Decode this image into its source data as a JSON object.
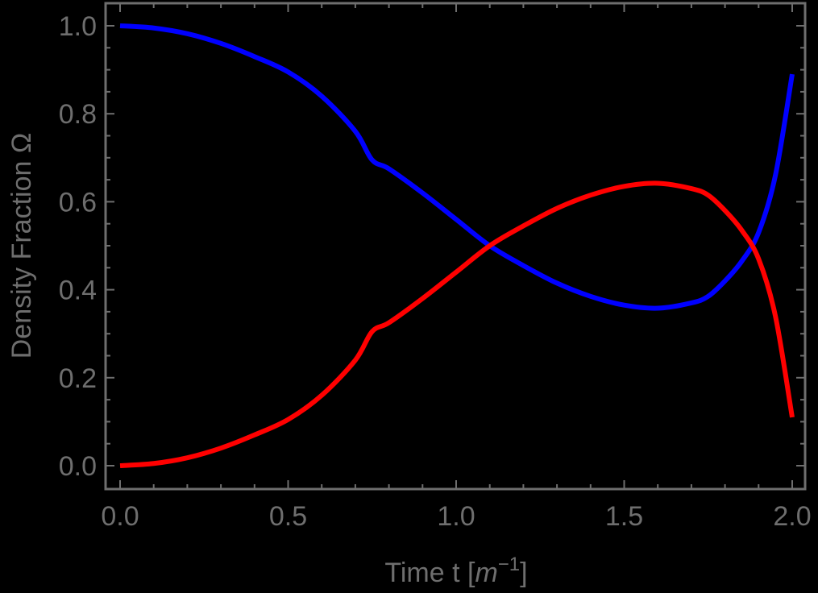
{
  "chart_data": {
    "type": "line",
    "title": "",
    "xlabel": "Time  t [m^-1]",
    "xlabel_parts": {
      "main": "Time  t [",
      "var": "m",
      "sup": "−1",
      "close": "]"
    },
    "ylabel": "Density Fraction  Ω",
    "xlim": [
      0.0,
      2.0
    ],
    "ylim": [
      0.0,
      1.0
    ],
    "x_ticks": [
      "0.0",
      "0.5",
      "1.0",
      "1.5",
      "2.0"
    ],
    "x_tick_values": [
      0.0,
      0.5,
      1.0,
      1.5,
      2.0
    ],
    "y_ticks": [
      "0.0",
      "0.2",
      "0.4",
      "0.6",
      "0.8",
      "1.0"
    ],
    "y_tick_values": [
      0.0,
      0.2,
      0.4,
      0.6,
      0.8,
      1.0
    ],
    "grid": false,
    "legend": null,
    "background": "#000000",
    "axis_color": "#6e6e6e",
    "x": [
      0.0,
      0.1,
      0.2,
      0.3,
      0.4,
      0.5,
      0.6,
      0.7,
      0.75,
      0.8,
      0.9,
      1.0,
      1.1,
      1.2,
      1.3,
      1.4,
      1.5,
      1.6,
      1.7,
      1.75,
      1.8,
      1.85,
      1.9,
      1.95,
      2.0
    ],
    "series": [
      {
        "name": "blue",
        "color": "#0000ff",
        "values": [
          1.0,
          0.995,
          0.982,
          0.96,
          0.93,
          0.895,
          0.84,
          0.76,
          0.695,
          0.675,
          0.62,
          0.56,
          0.5,
          0.455,
          0.415,
          0.385,
          0.365,
          0.358,
          0.37,
          0.385,
          0.42,
          0.465,
          0.53,
          0.66,
          0.89
        ]
      },
      {
        "name": "red",
        "color": "#ff0000",
        "values": [
          0.0,
          0.005,
          0.018,
          0.04,
          0.07,
          0.105,
          0.16,
          0.24,
          0.305,
          0.325,
          0.38,
          0.44,
          0.5,
          0.545,
          0.585,
          0.615,
          0.635,
          0.642,
          0.63,
          0.615,
          0.58,
          0.535,
          0.47,
          0.34,
          0.11
        ]
      }
    ]
  }
}
